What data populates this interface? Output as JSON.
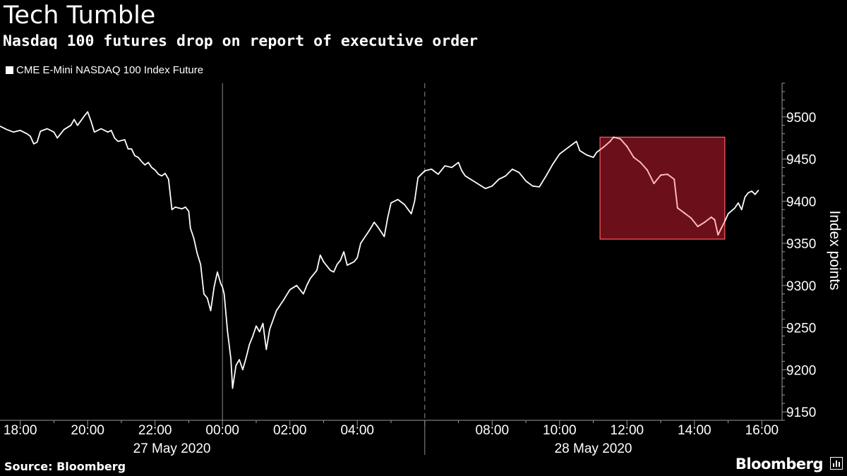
{
  "header": {
    "title": "Tech Tumble",
    "subtitle": "Nasdaq 100 futures drop on report of executive order"
  },
  "footer": {
    "source": "Source: Bloomberg",
    "brand": "Bloomberg"
  },
  "colors": {
    "background": "#000000",
    "line": "#ffffff",
    "highlight_fill": "#6b0f1a",
    "highlight_border": "#ff5f5f",
    "highlight_line": "#ffb3b3"
  },
  "chart_data": {
    "type": "line",
    "legend": [
      "CME E-Mini NASDAQ 100 Index Future"
    ],
    "legend_position": "top-left",
    "ylabel": "Index points",
    "ylim": [
      9140,
      9540
    ],
    "yticks": [
      9150,
      9200,
      9250,
      9300,
      9350,
      9400,
      9450,
      9500
    ],
    "xlim": [
      -6.6,
      16.6
    ],
    "xticks": [
      {
        "hour": -6,
        "label": "18:00"
      },
      {
        "hour": -4,
        "label": "20:00"
      },
      {
        "hour": -2,
        "label": "22:00"
      },
      {
        "hour": 0,
        "label": "00:00"
      },
      {
        "hour": 2,
        "label": "02:00"
      },
      {
        "hour": 4,
        "label": "04:00"
      },
      {
        "hour": 8,
        "label": "08:00"
      },
      {
        "hour": 10,
        "label": "10:00"
      },
      {
        "hour": 12,
        "label": "12:00"
      },
      {
        "hour": 14,
        "label": "14:00"
      },
      {
        "hour": 16,
        "label": "16:00"
      }
    ],
    "date_labels": [
      {
        "hour": -1.5,
        "label": "27 May 2020"
      },
      {
        "hour": 11.0,
        "label": "28 May 2020"
      }
    ],
    "day_divider_hour": 6,
    "midnight_hour": 0,
    "x_unit": "hours relative to 00:00 on 28 May 2020",
    "highlight": {
      "x": [
        11.2,
        14.9
      ],
      "y": [
        9355,
        9476
      ]
    },
    "series": [
      {
        "name": "CME E-Mini NASDAQ 100 Index Future",
        "points": [
          [
            -6.6,
            9489
          ],
          [
            -6.4,
            9485
          ],
          [
            -6.2,
            9482
          ],
          [
            -6.0,
            9484
          ],
          [
            -5.8,
            9480
          ],
          [
            -5.7,
            9477
          ],
          [
            -5.6,
            9468
          ],
          [
            -5.5,
            9470
          ],
          [
            -5.4,
            9483
          ],
          [
            -5.2,
            9486
          ],
          [
            -5.0,
            9482
          ],
          [
            -4.9,
            9475
          ],
          [
            -4.7,
            9485
          ],
          [
            -4.5,
            9490
          ],
          [
            -4.4,
            9497
          ],
          [
            -4.3,
            9490
          ],
          [
            -4.1,
            9501
          ],
          [
            -4.0,
            9506
          ],
          [
            -3.9,
            9495
          ],
          [
            -3.8,
            9482
          ],
          [
            -3.6,
            9486
          ],
          [
            -3.4,
            9482
          ],
          [
            -3.3,
            9484
          ],
          [
            -3.2,
            9475
          ],
          [
            -3.1,
            9471
          ],
          [
            -2.9,
            9473
          ],
          [
            -2.8,
            9462
          ],
          [
            -2.7,
            9462
          ],
          [
            -2.6,
            9454
          ],
          [
            -2.5,
            9452
          ],
          [
            -2.4,
            9447
          ],
          [
            -2.3,
            9443
          ],
          [
            -2.2,
            9446
          ],
          [
            -2.1,
            9440
          ],
          [
            -2.0,
            9437
          ],
          [
            -1.9,
            9432
          ],
          [
            -1.8,
            9430
          ],
          [
            -1.7,
            9433
          ],
          [
            -1.6,
            9426
          ],
          [
            -1.5,
            9390
          ],
          [
            -1.4,
            9393
          ],
          [
            -1.2,
            9391
          ],
          [
            -1.1,
            9393
          ],
          [
            -1.0,
            9388
          ],
          [
            -0.95,
            9368
          ],
          [
            -0.85,
            9356
          ],
          [
            -0.75,
            9338
          ],
          [
            -0.65,
            9325
          ],
          [
            -0.55,
            9290
          ],
          [
            -0.45,
            9285
          ],
          [
            -0.35,
            9270
          ],
          [
            -0.25,
            9298
          ],
          [
            -0.15,
            9316
          ],
          [
            -0.05,
            9302
          ],
          [
            0.0,
            9298
          ],
          [
            0.05,
            9290
          ],
          [
            0.15,
            9245
          ],
          [
            0.25,
            9213
          ],
          [
            0.3,
            9178
          ],
          [
            0.4,
            9205
          ],
          [
            0.5,
            9212
          ],
          [
            0.6,
            9200
          ],
          [
            0.7,
            9214
          ],
          [
            0.8,
            9230
          ],
          [
            0.9,
            9240
          ],
          [
            1.0,
            9252
          ],
          [
            1.1,
            9245
          ],
          [
            1.2,
            9255
          ],
          [
            1.3,
            9224
          ],
          [
            1.4,
            9248
          ],
          [
            1.6,
            9270
          ],
          [
            1.8,
            9282
          ],
          [
            2.0,
            9295
          ],
          [
            2.2,
            9300
          ],
          [
            2.4,
            9290
          ],
          [
            2.5,
            9300
          ],
          [
            2.6,
            9308
          ],
          [
            2.8,
            9318
          ],
          [
            2.9,
            9336
          ],
          [
            3.0,
            9328
          ],
          [
            3.2,
            9318
          ],
          [
            3.3,
            9316
          ],
          [
            3.4,
            9325
          ],
          [
            3.5,
            9330
          ],
          [
            3.6,
            9340
          ],
          [
            3.7,
            9324
          ],
          [
            3.9,
            9328
          ],
          [
            4.0,
            9333
          ],
          [
            4.1,
            9350
          ],
          [
            4.3,
            9362
          ],
          [
            4.4,
            9368
          ],
          [
            4.5,
            9375
          ],
          [
            4.6,
            9370
          ],
          [
            4.8,
            9358
          ],
          [
            4.9,
            9380
          ],
          [
            5.0,
            9398
          ],
          [
            5.2,
            9402
          ],
          [
            5.4,
            9396
          ],
          [
            5.6,
            9385
          ],
          [
            5.7,
            9400
          ],
          [
            5.8,
            9428
          ],
          [
            6.0,
            9436
          ],
          [
            6.2,
            9438
          ],
          [
            6.4,
            9432
          ],
          [
            6.6,
            9442
          ],
          [
            6.8,
            9440
          ],
          [
            7.0,
            9446
          ],
          [
            7.1,
            9436
          ],
          [
            7.2,
            9430
          ],
          [
            7.4,
            9425
          ],
          [
            7.6,
            9420
          ],
          [
            7.8,
            9415
          ],
          [
            8.0,
            9418
          ],
          [
            8.2,
            9426
          ],
          [
            8.4,
            9430
          ],
          [
            8.6,
            9438
          ],
          [
            8.8,
            9434
          ],
          [
            9.0,
            9424
          ],
          [
            9.2,
            9418
          ],
          [
            9.4,
            9417
          ],
          [
            9.6,
            9430
          ],
          [
            9.8,
            9444
          ],
          [
            10.0,
            9456
          ],
          [
            10.2,
            9462
          ],
          [
            10.4,
            9468
          ],
          [
            10.5,
            9471
          ],
          [
            10.6,
            9460
          ],
          [
            10.8,
            9455
          ],
          [
            11.0,
            9452
          ],
          [
            11.1,
            9458
          ],
          [
            11.3,
            9464
          ],
          [
            11.5,
            9471
          ],
          [
            11.6,
            9476
          ],
          [
            11.8,
            9474
          ],
          [
            12.0,
            9465
          ],
          [
            12.2,
            9452
          ],
          [
            12.4,
            9446
          ],
          [
            12.6,
            9437
          ],
          [
            12.8,
            9421
          ],
          [
            13.0,
            9431
          ],
          [
            13.2,
            9432
          ],
          [
            13.4,
            9426
          ],
          [
            13.5,
            9392
          ],
          [
            13.7,
            9386
          ],
          [
            13.9,
            9380
          ],
          [
            14.1,
            9370
          ],
          [
            14.3,
            9375
          ],
          [
            14.5,
            9381
          ],
          [
            14.6,
            9378
          ],
          [
            14.7,
            9360
          ],
          [
            14.8,
            9368
          ],
          [
            14.9,
            9376
          ],
          [
            15.0,
            9385
          ],
          [
            15.2,
            9392
          ],
          [
            15.3,
            9398
          ],
          [
            15.4,
            9390
          ],
          [
            15.5,
            9405
          ],
          [
            15.6,
            9410
          ],
          [
            15.7,
            9412
          ],
          [
            15.8,
            9408
          ],
          [
            15.9,
            9413
          ]
        ]
      }
    ]
  }
}
